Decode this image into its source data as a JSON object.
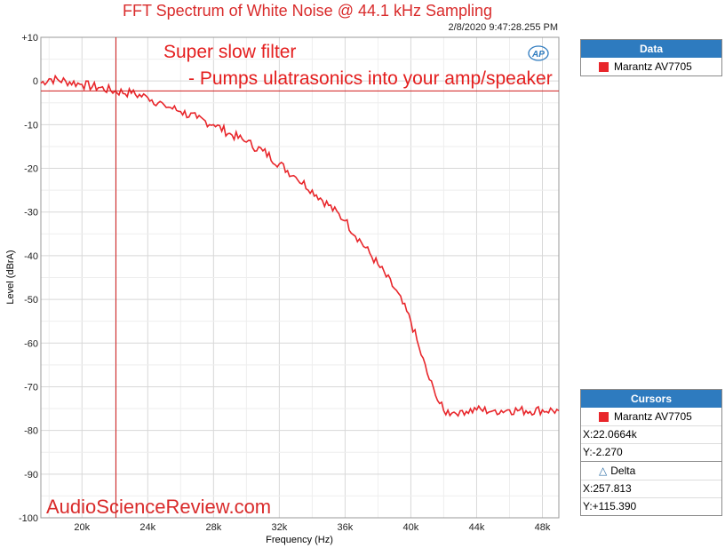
{
  "chart_data": {
    "type": "line",
    "title": "FFT Spectrum of White Noise @ 44.1 kHz Sampling",
    "timestamp": "2/8/2020 9:47:28.255 PM",
    "xlabel": "Frequency (Hz)",
    "ylabel": "Level (dBrA)",
    "xlim": [
      17500,
      49000
    ],
    "ylim": [
      -100,
      10
    ],
    "x_ticks": [
      20000,
      24000,
      28000,
      32000,
      36000,
      40000,
      44000,
      48000
    ],
    "x_tick_labels": [
      "20k",
      "24k",
      "28k",
      "32k",
      "36k",
      "40k",
      "44k",
      "48k"
    ],
    "y_ticks": [
      10,
      0,
      -10,
      -20,
      -30,
      -40,
      -50,
      -60,
      -70,
      -80,
      -90,
      -100
    ],
    "y_tick_labels": [
      "+10",
      "0",
      "-10",
      "-20",
      "-30",
      "-40",
      "-50",
      "-60",
      "-70",
      "-80",
      "-90",
      "-100"
    ],
    "grid": true,
    "series": [
      {
        "name": "Marantz AV7705",
        "color": "#e8262b",
        "x": [
          17500,
          18000,
          19000,
          20000,
          21000,
          22000,
          23000,
          24000,
          25000,
          26000,
          27000,
          28000,
          29000,
          30000,
          31000,
          32000,
          33000,
          34000,
          35000,
          36000,
          37000,
          38000,
          39000,
          39500,
          40000,
          40500,
          41000,
          41500,
          42000,
          42500,
          43000,
          44000,
          45000,
          46000,
          47000,
          48000,
          49000
        ],
        "values": [
          -0.5,
          0.5,
          0,
          -0.8,
          -1.5,
          -2.3,
          -2.8,
          -3.8,
          -5.5,
          -7,
          -8.5,
          -10,
          -12,
          -14,
          -16,
          -19,
          -22,
          -25,
          -28.5,
          -32,
          -37,
          -42,
          -47.5,
          -51,
          -55,
          -61,
          -67,
          -72,
          -75.5,
          -76,
          -75.5,
          -75.3,
          -75.5,
          -75.3,
          -75.5,
          -75.3,
          -75.5
        ]
      }
    ],
    "cursor": {
      "x": 22066.4,
      "y": -2.27
    },
    "cursor_line_color": "#d11c1c"
  },
  "annotations": {
    "line1": "Super slow filter",
    "line2": "- Pumps ulatrasonics into your amp/speaker"
  },
  "data_panel": {
    "header": "Data",
    "entries": [
      {
        "label": "Marantz AV7705",
        "color": "#e8262b"
      }
    ]
  },
  "cursors_panel": {
    "header": "Cursors",
    "trace_label": "Marantz AV7705",
    "x_readout": "X:22.0664k",
    "y_readout": "Y:-2.270",
    "delta_label": "Delta",
    "delta_x": "X:257.813",
    "delta_y": "Y:+115.390"
  },
  "logo_text": "AP",
  "watermark": "AudioScienceReview.com"
}
